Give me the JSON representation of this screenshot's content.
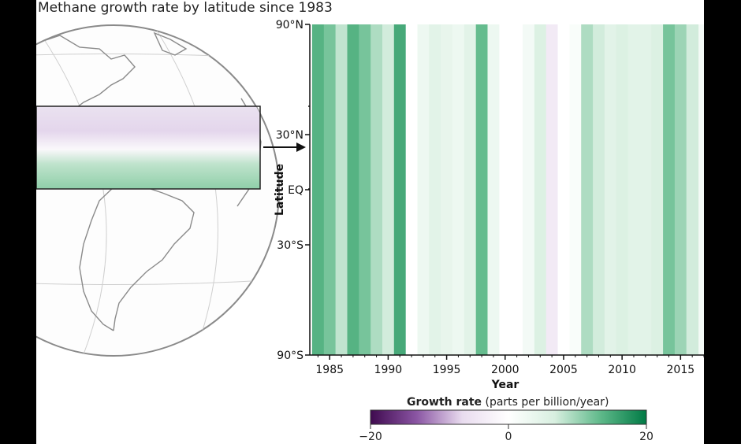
{
  "title": "Methane growth rate by latitude since 1983",
  "chart_data": {
    "type": "heatmap",
    "title": "Methane growth rate by latitude since 1983",
    "xlabel": "Year",
    "ylabel": "Latitude",
    "xlim": [
      1983.3,
      2017.0
    ],
    "ylim": [
      -90,
      90
    ],
    "x_ticks": [
      1985,
      1990,
      1995,
      2000,
      2005,
      2010,
      2015
    ],
    "y_ticks": [
      {
        "value": 90,
        "label": "90°N"
      },
      {
        "value": 30,
        "label": "30°N"
      },
      {
        "value": 0,
        "label": "EQ"
      },
      {
        "value": -30,
        "label": "30°S"
      },
      {
        "value": -90,
        "label": "90°S"
      }
    ],
    "colorbar": {
      "label": "Growth rate",
      "units": "(parts per billion/year)",
      "min": -20,
      "max": 20,
      "ticks": [
        "−20",
        "0",
        "20"
      ],
      "colors": [
        "#3f0a4f",
        "#8a55a3",
        "#e9dcef",
        "#ffffff",
        "#d8efe0",
        "#5fb98a",
        "#007a45"
      ]
    },
    "annual_growth_rate_by_year": [
      {
        "year": 1984,
        "value": 14
      },
      {
        "year": 1985,
        "value": 12
      },
      {
        "year": 1986,
        "value": 8
      },
      {
        "year": 1987,
        "value": 14
      },
      {
        "year": 1988,
        "value": 12
      },
      {
        "year": 1989,
        "value": 9
      },
      {
        "year": 1990,
        "value": 7
      },
      {
        "year": 1991,
        "value": 15
      },
      {
        "year": 1992,
        "value": 0
      },
      {
        "year": 1993,
        "value": 3
      },
      {
        "year": 1994,
        "value": 5
      },
      {
        "year": 1995,
        "value": 4
      },
      {
        "year": 1996,
        "value": 3
      },
      {
        "year": 1997,
        "value": 5
      },
      {
        "year": 1998,
        "value": 13
      },
      {
        "year": 1999,
        "value": 3
      },
      {
        "year": 2000,
        "value": 0
      },
      {
        "year": 2001,
        "value": 0
      },
      {
        "year": 2002,
        "value": 2
      },
      {
        "year": 2003,
        "value": 6
      },
      {
        "year": 2004,
        "value": -4
      },
      {
        "year": 2005,
        "value": 0
      },
      {
        "year": 2006,
        "value": 1
      },
      {
        "year": 2007,
        "value": 9
      },
      {
        "year": 2008,
        "value": 7
      },
      {
        "year": 2009,
        "value": 5
      },
      {
        "year": 2010,
        "value": 6
      },
      {
        "year": 2011,
        "value": 5
      },
      {
        "year": 2012,
        "value": 5
      },
      {
        "year": 2013,
        "value": 6
      },
      {
        "year": 2014,
        "value": 12
      },
      {
        "year": 2015,
        "value": 10
      },
      {
        "year": 2016,
        "value": 7
      }
    ]
  }
}
